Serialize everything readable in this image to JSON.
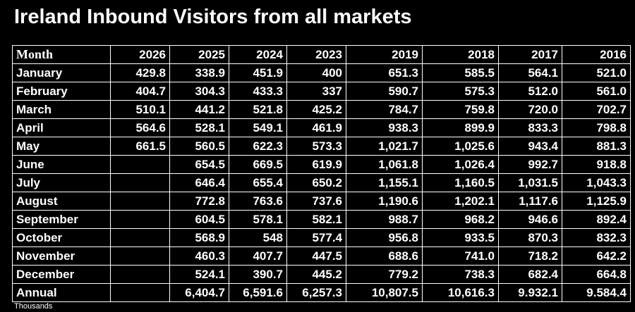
{
  "title": "Ireland Inbound Visitors from all markets",
  "table": {
    "header": [
      "Month",
      "2026",
      "2025",
      "2024",
      "2023",
      "2019",
      "2018",
      "2017",
      "2016"
    ],
    "rows": [
      [
        "January",
        "429.8",
        "338.9",
        "451.9",
        "400",
        "651.3",
        "585.5",
        "564.1",
        "521.0"
      ],
      [
        "February",
        "404.7",
        "304.3",
        "433.3",
        "337",
        "590.7",
        "575.3",
        "512.0",
        "561.0"
      ],
      [
        "March",
        "510.1",
        "441.2",
        "521.8",
        "425.2",
        "784.7",
        "759.8",
        "720.0",
        "702.7"
      ],
      [
        "April",
        "564.6",
        "528.1",
        "549.1",
        "461.9",
        "938.3",
        "899.9",
        "833.3",
        "798.8"
      ],
      [
        "May",
        "661.5",
        "560.5",
        "622.3",
        "573.3",
        "1,021.7",
        "1,025.6",
        "943.4",
        "881.3"
      ],
      [
        "June",
        null,
        "654.5",
        "669.5",
        "619.9",
        "1,061.8",
        "1,026.4",
        "992.7",
        "918.8"
      ],
      [
        "July",
        null,
        "646.4",
        "655.4",
        "650.2",
        "1,155.1",
        "1,160.5",
        "1,031.5",
        "1,043.3"
      ],
      [
        "August",
        null,
        "772.8",
        "763.6",
        "737.6",
        "1,190.6",
        "1,202.1",
        "1,117.6",
        "1,125.9"
      ],
      [
        "September",
        null,
        "604.5",
        "578.1",
        "582.1",
        "988.7",
        "968.2",
        "946.6",
        "892.4"
      ],
      [
        "October",
        null,
        "568.9",
        "548",
        "577.4",
        "956.8",
        "933.5",
        "870.3",
        "832.3"
      ],
      [
        "November",
        null,
        "460.3",
        "407.7",
        "447.5",
        "688.6",
        "741.0",
        "718.2",
        "642.2"
      ],
      [
        "December",
        null,
        "524.1",
        "390.7",
        "445.2",
        "779.2",
        "738.3",
        "682.4",
        "664.8"
      ],
      [
        "Annual",
        null,
        "6,404.7",
        "6,591.6",
        "6,257.3",
        "10,807.5",
        "10,616.3",
        "9.932.1",
        "9.584.4"
      ]
    ]
  },
  "footnote": "Thousands"
}
